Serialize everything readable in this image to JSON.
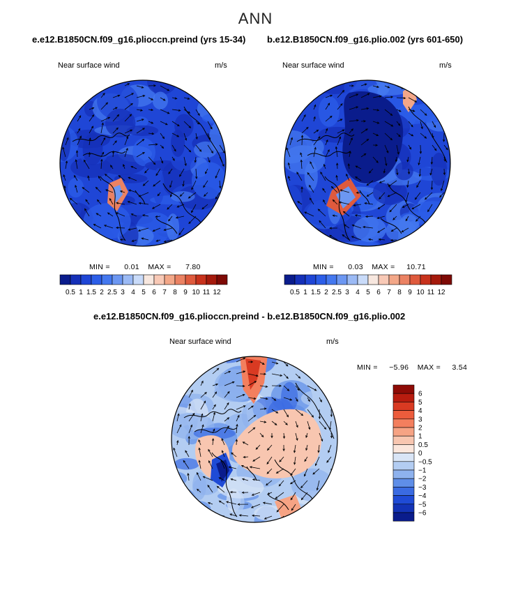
{
  "main_title": "ANN",
  "panels": [
    {
      "case_title": "e.e12.B1850CN.f09_g16.plioccn.preind (yrs 15-34)",
      "field_label": "Near surface wind",
      "units": "m/s",
      "min_label": "MIN =",
      "min_value": "0.01",
      "max_label": "MAX =",
      "max_value": "7.80"
    },
    {
      "case_title": "b.e12.B1850CN.f09_g16.plio.002 (yrs 601-650)",
      "field_label": "Near surface wind",
      "units": "m/s",
      "min_label": "MIN =",
      "min_value": "0.03",
      "max_label": "MAX =",
      "max_value": "10.71"
    },
    {
      "case_title": "e.e12.B1850CN.f09_g16.plioccn.preind - b.e12.B1850CN.f09_g16.plio.002",
      "field_label": "Near surface wind",
      "units": "m/s",
      "min_label": "MIN =",
      "min_value": "−5.96",
      "max_label": "MAX =",
      "max_value": "3.54"
    }
  ],
  "chart_data": [
    {
      "type": "heatmap",
      "title": "e.e12.B1850CN.f09_g16.plioccn.preind (yrs 15-34)",
      "variable": "Near surface wind",
      "units": "m/s",
      "projection": "polar-stereographic (Arctic)",
      "min": 0.01,
      "max": 7.8,
      "colorbar": {
        "orientation": "horizontal",
        "tick_labels": [
          "0.5",
          "1",
          "1.5",
          "2",
          "2.5",
          "3",
          "4",
          "5",
          "6",
          "7",
          "8",
          "9",
          "10",
          "11",
          "12"
        ],
        "colors": [
          "#0a1c8c",
          "#1530b8",
          "#1f46d6",
          "#2c5ee8",
          "#4478ef",
          "#6c97f2",
          "#9bbaf5",
          "#c9dbf9",
          "#f7e7df",
          "#f8c9b6",
          "#f3a788",
          "#eb8263",
          "#df5a3d",
          "#c8321c",
          "#a51a0c",
          "#7e0a05"
        ]
      }
    },
    {
      "type": "heatmap",
      "title": "b.e12.B1850CN.f09_g16.plio.002 (yrs 601-650)",
      "variable": "Near surface wind",
      "units": "m/s",
      "projection": "polar-stereographic (Arctic)",
      "min": 0.03,
      "max": 10.71,
      "colorbar": {
        "orientation": "horizontal",
        "tick_labels": [
          "0.5",
          "1",
          "1.5",
          "2",
          "2.5",
          "3",
          "4",
          "5",
          "6",
          "7",
          "8",
          "9",
          "10",
          "11",
          "12"
        ],
        "colors": [
          "#0a1c8c",
          "#1530b8",
          "#1f46d6",
          "#2c5ee8",
          "#4478ef",
          "#6c97f2",
          "#9bbaf5",
          "#c9dbf9",
          "#f7e7df",
          "#f8c9b6",
          "#f3a788",
          "#eb8263",
          "#df5a3d",
          "#c8321c",
          "#a51a0c",
          "#7e0a05"
        ]
      }
    },
    {
      "type": "heatmap",
      "title": "e.e12.B1850CN.f09_g16.plioccn.preind - b.e12.B1850CN.f09_g16.plio.002",
      "variable": "Near surface wind",
      "units": "m/s",
      "projection": "polar-stereographic (Arctic)",
      "min": -5.96,
      "max": 3.54,
      "colorbar": {
        "orientation": "vertical",
        "tick_labels": [
          "6",
          "5",
          "4",
          "3",
          "2",
          "1",
          "0.5",
          "0",
          "−0.5",
          "−1",
          "−2",
          "−3",
          "−4",
          "−5",
          "−6"
        ],
        "colors": [
          "#8e0b06",
          "#b81c0f",
          "#d93a22",
          "#ec5c3c",
          "#f37f5e",
          "#f6a384",
          "#f8c6b0",
          "#fbe6dc",
          "#d9e5f6",
          "#b3cdf2",
          "#8eb2ee",
          "#5f8ee8",
          "#3a6be2",
          "#1f4bd6",
          "#1333b6",
          "#0a1c8c"
        ]
      }
    }
  ]
}
